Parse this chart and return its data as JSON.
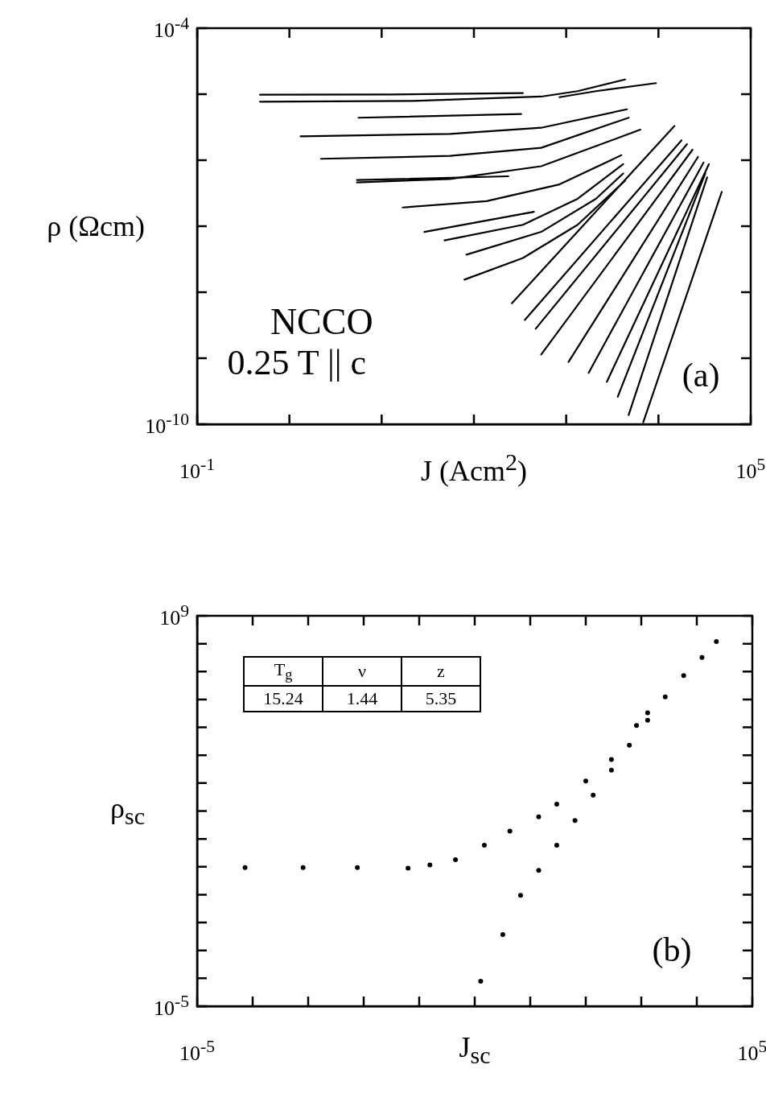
{
  "chart_data": [
    {
      "type": "line",
      "xlabel": "J (Acm$^{2}$)",
      "ylabel": "ρ (Ωcm)",
      "log": "xy",
      "line_style": "solid",
      "marker": "none",
      "xlim": [
        0.1,
        100000
      ],
      "ylim": [
        1e-10,
        0.0001
      ],
      "xticks": [
        {
          "value": 0.1,
          "label": "10$^{-1}$"
        },
        {
          "value": 1,
          "label": null
        },
        {
          "value": 10,
          "label": null
        },
        {
          "value": 100,
          "label": null
        },
        {
          "value": 1000,
          "label": null
        },
        {
          "value": 10000,
          "label": null
        },
        {
          "value": 100000,
          "label": "10$^{5}$"
        }
      ],
      "yticks": [
        {
          "value": 1e-10,
          "label": "10$^{-10}$"
        },
        {
          "value": 1e-09,
          "label": null
        },
        {
          "value": 1e-08,
          "label": null
        },
        {
          "value": 1e-07,
          "label": null
        },
        {
          "value": 1e-06,
          "label": null
        },
        {
          "value": 1e-05,
          "label": null
        },
        {
          "value": 0.0001,
          "label": "10$^{-4}$"
        }
      ],
      "annotations": [
        "NCCO",
        "0.25 T || c",
        "(a)"
      ],
      "series": [
        {
          "color": "#000000",
          "x": [
            0.48,
            12.8,
            340
          ],
          "values": [
            9.8e-06,
            9.9e-06,
            1.04e-05
          ]
        },
        {
          "color": "#000000",
          "x": [
            0.48,
            22,
            536,
            1330,
            4350
          ],
          "values": [
            7.7e-06,
            7.9e-06,
            9.2e-06,
            1.11e-05,
            1.67e-05
          ]
        },
        {
          "color": "#000000",
          "x": [
            845,
            2100,
            9400
          ],
          "values": [
            9e-06,
            1.11e-05,
            1.47e-05
          ]
        },
        {
          "color": "#000000",
          "x": [
            5.6,
            325
          ],
          "values": [
            4.4e-06,
            5e-06
          ]
        },
        {
          "color": "#000000",
          "x": [
            1.32,
            55,
            536,
            4550
          ],
          "values": [
            2.3e-06,
            2.5e-06,
            3.1e-06,
            5.9e-06
          ]
        },
        {
          "color": "#000000",
          "x": [
            2.2,
            55,
            536,
            4760
          ],
          "values": [
            1.05e-06,
            1.16e-06,
            1.54e-06,
            4.4e-06
          ]
        },
        {
          "color": "#000000",
          "x": [
            5.4,
            55,
            536,
            6370
          ],
          "values": [
            4.6e-07,
            5.2e-07,
            8.1e-07,
            2.9e-06
          ]
        },
        {
          "color": "#000000",
          "x": [
            5.4,
            236
          ],
          "values": [
            5e-07,
            5.7e-07
          ]
        },
        {
          "color": "#000000",
          "x": [
            16.9,
            137,
            845,
            3960
          ],
          "values": [
            1.92e-07,
            2.4e-07,
            4.3e-07,
            1.19e-06
          ]
        },
        {
          "color": "#000000",
          "x": [
            29,
            447
          ],
          "values": [
            8.2e-08,
            1.65e-07
          ]
        },
        {
          "color": "#000000",
          "x": [
            48,
            340,
            1330,
            4150
          ],
          "values": [
            6.1e-08,
            1.05e-07,
            2.6e-07,
            8.7e-07
          ]
        },
        {
          "color": "#000000",
          "x": [
            83,
            536,
            2100,
            4150
          ],
          "values": [
            3.7e-08,
            8.2e-08,
            2.6e-07,
            6.3e-07
          ]
        },
        {
          "color": "#000000",
          "x": [
            79,
            340,
            1330,
            4350
          ],
          "values": [
            1.55e-08,
            3.3e-08,
            1.05e-07,
            4.9e-07
          ]
        },
        {
          "color": "#000000",
          "x": [
            258,
            14900
          ],
          "values": [
            6.8e-09,
            3.3e-06
          ]
        },
        {
          "color": "#000000",
          "x": [
            356,
            17800
          ],
          "values": [
            3.8e-09,
            2e-06
          ]
        },
        {
          "color": "#000000",
          "x": [
            467,
            20400
          ],
          "values": [
            2.8e-09,
            1.75e-06
          ]
        },
        {
          "color": "#000000",
          "x": [
            536,
            23400
          ],
          "values": [
            1.14e-09,
            1.44e-06
          ]
        },
        {
          "color": "#000000",
          "x": [
            1060,
            26800
          ],
          "values": [
            8.8e-10,
            1.12e-06
          ]
        },
        {
          "color": "#000000",
          "x": [
            1750,
            30800
          ],
          "values": [
            6e-10,
            9.2e-07
          ]
        },
        {
          "color": "#000000",
          "x": [
            2760,
            35200
          ],
          "values": [
            4.4e-10,
            8.7e-07
          ]
        },
        {
          "color": "#000000",
          "x": [
            3620,
            32200
          ],
          "values": [
            2.6e-10,
            6.3e-07
          ]
        },
        {
          "color": "#000000",
          "x": [
            4750,
            33700
          ],
          "values": [
            1.38e-10,
            5.5e-07
          ]
        },
        {
          "color": "#000000",
          "x": [
            6840,
            48500
          ],
          "values": [
            1.07e-10,
            3.3e-07
          ]
        }
      ]
    },
    {
      "type": "scatter",
      "xlabel": "J$_{sc}$",
      "ylabel": "ρ$_{sc}$",
      "log": "xy",
      "marker": "circle",
      "xlim": [
        1e-05,
        100000
      ],
      "ylim": [
        1e-05,
        1000000000.0
      ],
      "xticks": [
        {
          "value": 1e-05,
          "label": "10$^{-5}$"
        },
        {
          "value": 0.0001,
          "label": null
        },
        {
          "value": 0.001,
          "label": null
        },
        {
          "value": 0.01,
          "label": null
        },
        {
          "value": 0.1,
          "label": null
        },
        {
          "value": 1,
          "label": null
        },
        {
          "value": 10,
          "label": null
        },
        {
          "value": 100,
          "label": null
        },
        {
          "value": 1000,
          "label": null
        },
        {
          "value": 10000,
          "label": null
        },
        {
          "value": 100000,
          "label": "10$^{5}$"
        }
      ],
      "yticks": [
        {
          "value": 1e-05,
          "label": "10$^{-5}$"
        },
        {
          "value": 0.0001,
          "label": null
        },
        {
          "value": 0.001,
          "label": null
        },
        {
          "value": 0.01,
          "label": null
        },
        {
          "value": 0.1,
          "label": null
        },
        {
          "value": 1,
          "label": null
        },
        {
          "value": 10,
          "label": null
        },
        {
          "value": 100,
          "label": null
        },
        {
          "value": 1000,
          "label": null
        },
        {
          "value": 10000,
          "label": null
        },
        {
          "value": 100000,
          "label": null
        },
        {
          "value": 1000000.0,
          "label": null
        },
        {
          "value": 10000000.0,
          "label": null
        },
        {
          "value": 100000000.0,
          "label": null
        },
        {
          "value": 1000000000.0,
          "label": "10$^{9}$"
        }
      ],
      "annotations": [
        "T$_{g}$",
        "ν",
        "z",
        "15.24",
        "1.44",
        "5.35",
        "(b)"
      ],
      "series": [
        {
          "color": "#000000",
          "x": [
            7.3e-05,
            0.00081,
            0.0077,
            0.063,
            0.156,
            0.45,
            1.49,
            4.3,
            14.2,
            30,
            100,
            290,
            820,
            1300,
            2700,
            5800,
            12400,
            22500
          ],
          "values": [
            0.94,
            0.94,
            0.94,
            0.89,
            1.16,
            1.8,
            5.9,
            19,
            62,
            175,
            1190,
            7000,
            116000.0,
            330000.0,
            1230000.0,
            7200000.0,
            32000000.0,
            119000000.0
          ]
        },
        {
          "color": "#000000",
          "x": [
            1.28,
            3.2,
            6.7,
            14.2,
            30,
            64,
            136,
            290,
            610,
            1300
          ],
          "values": [
            7.9e-05,
            0.0037,
            0.094,
            0.74,
            5.9,
            46,
            370,
            2900,
            23000.0,
            180000.0
          ]
        }
      ]
    }
  ]
}
